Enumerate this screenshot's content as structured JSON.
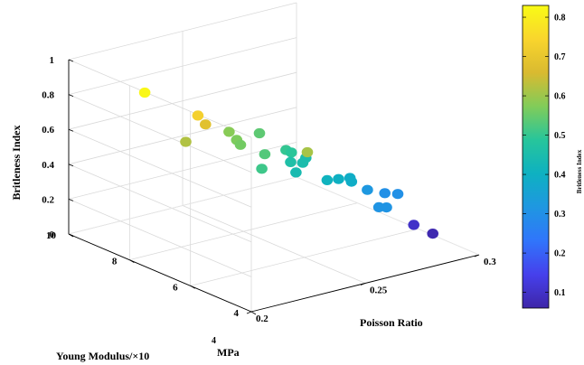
{
  "chart_data": {
    "type": "scatter",
    "mode": "3d",
    "title": "",
    "xlabel": "Poisson Ratio",
    "ylabel_main": "Young Modulus/×10",
    "ylabel_sup": "4",
    "ylabel_unit": " MPa",
    "zlabel": "Britleness Index",
    "xlim": [
      0.2,
      0.3
    ],
    "ylim": [
      4,
      10
    ],
    "zlim": [
      0,
      1
    ],
    "x_ticks": [
      "0.2",
      "0.25",
      "0.3"
    ],
    "y_ticks": [
      "10",
      "8",
      "6",
      "4"
    ],
    "z_ticks": [
      "0",
      "0.2",
      "0.4",
      "0.6",
      "0.8",
      "1"
    ],
    "grid": true,
    "colormap": "parula",
    "colorbar": {
      "label": "Britleness Index",
      "range": [
        0.06,
        0.83
      ],
      "ticks": [
        "0.8",
        "0.7",
        "0.6",
        "0.5",
        "0.4",
        "0.3",
        "0.2",
        "0.1"
      ],
      "stops": [
        "#3e26a8",
        "#4640ec",
        "#3075fb",
        "#1f97e1",
        "#0eb1c1",
        "#27c59b",
        "#81cc59",
        "#d9ba30",
        "#f9d52d",
        "#f9fb15"
      ]
    },
    "points": [
      {
        "x": 0.22,
        "y": 9.0,
        "z": 0.82
      },
      {
        "x": 0.23,
        "y": 8.0,
        "z": 0.73
      },
      {
        "x": 0.232,
        "y": 7.9,
        "z": 0.68
      },
      {
        "x": 0.222,
        "y": 7.8,
        "z": 0.62
      },
      {
        "x": 0.245,
        "y": 8.1,
        "z": 0.58
      },
      {
        "x": 0.243,
        "y": 7.7,
        "z": 0.57
      },
      {
        "x": 0.242,
        "y": 7.5,
        "z": 0.56
      },
      {
        "x": 0.257,
        "y": 8.0,
        "z": 0.54
      },
      {
        "x": 0.258,
        "y": 7.2,
        "z": 0.5
      },
      {
        "x": 0.259,
        "y": 7.1,
        "z": 0.49
      },
      {
        "x": 0.246,
        "y": 7.0,
        "z": 0.53
      },
      {
        "x": 0.256,
        "y": 6.9,
        "z": 0.46
      },
      {
        "x": 0.264,
        "y": 7.0,
        "z": 0.45
      },
      {
        "x": 0.26,
        "y": 6.8,
        "z": 0.45
      },
      {
        "x": 0.238,
        "y": 6.5,
        "z": 0.51
      },
      {
        "x": 0.253,
        "y": 6.5,
        "z": 0.44
      },
      {
        "x": 0.25,
        "y": 5.9,
        "z": 0.61
      },
      {
        "x": 0.26,
        "y": 6.0,
        "z": 0.41
      },
      {
        "x": 0.265,
        "y": 6.0,
        "z": 0.4
      },
      {
        "x": 0.268,
        "y": 5.8,
        "z": 0.39
      },
      {
        "x": 0.27,
        "y": 6.0,
        "z": 0.39
      },
      {
        "x": 0.275,
        "y": 5.8,
        "z": 0.32
      },
      {
        "x": 0.28,
        "y": 5.6,
        "z": 0.3
      },
      {
        "x": 0.283,
        "y": 5.4,
        "z": 0.3
      },
      {
        "x": 0.268,
        "y": 4.9,
        "z": 0.31
      },
      {
        "x": 0.27,
        "y": 4.8,
        "z": 0.31
      },
      {
        "x": 0.29,
        "y": 5.4,
        "z": 0.1
      },
      {
        "x": 0.293,
        "y": 5.0,
        "z": 0.07
      }
    ]
  }
}
